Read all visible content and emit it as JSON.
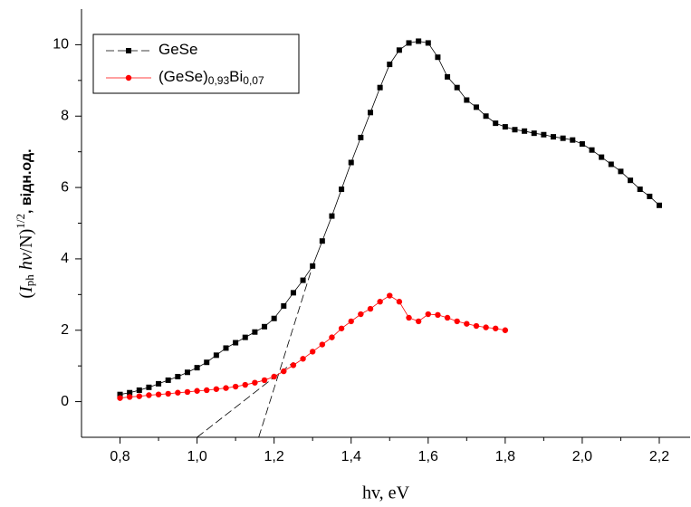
{
  "chart_data": {
    "type": "line",
    "x_label": "hv, eV",
    "y_label": "(Iphhv/N)1/2, відн.од.",
    "xlim": [
      0.7,
      2.28
    ],
    "ylim": [
      -1,
      11
    ],
    "xticks": [
      {
        "value": 0.8,
        "label": "0,8"
      },
      {
        "value": 1.0,
        "label": "1,0"
      },
      {
        "value": 1.2,
        "label": "1,2"
      },
      {
        "value": 1.4,
        "label": "1,4"
      },
      {
        "value": 1.6,
        "label": "1,6"
      },
      {
        "value": 1.8,
        "label": "1,8"
      },
      {
        "value": 2.0,
        "label": "2,0"
      },
      {
        "value": 2.2,
        "label": "2,2"
      }
    ],
    "yticks": [
      0,
      2,
      4,
      6,
      8,
      10
    ],
    "legend": "upper left",
    "series": [
      {
        "name": "GeSe",
        "color": "#000000",
        "marker": "square",
        "x": [
          0.8,
          0.825,
          0.85,
          0.875,
          0.9,
          0.925,
          0.95,
          0.975,
          1.0,
          1.025,
          1.05,
          1.075,
          1.1,
          1.125,
          1.15,
          1.175,
          1.2,
          1.225,
          1.25,
          1.275,
          1.3,
          1.325,
          1.35,
          1.375,
          1.4,
          1.425,
          1.45,
          1.475,
          1.5,
          1.525,
          1.55,
          1.575,
          1.6,
          1.625,
          1.65,
          1.675,
          1.7,
          1.725,
          1.75,
          1.775,
          1.8,
          1.825,
          1.85,
          1.875,
          1.9,
          1.925,
          1.95,
          1.975,
          2.0,
          2.025,
          2.05,
          2.075,
          2.1,
          2.125,
          2.15,
          2.175,
          2.2
        ],
        "values": [
          0.2,
          0.25,
          0.32,
          0.4,
          0.5,
          0.6,
          0.7,
          0.82,
          0.95,
          1.1,
          1.3,
          1.5,
          1.65,
          1.8,
          1.95,
          2.1,
          2.33,
          2.68,
          3.05,
          3.4,
          3.8,
          4.5,
          5.2,
          5.95,
          6.7,
          7.4,
          8.1,
          8.8,
          9.45,
          9.85,
          10.05,
          10.1,
          10.05,
          9.65,
          9.1,
          8.8,
          8.45,
          8.25,
          8.0,
          7.8,
          7.7,
          7.62,
          7.58,
          7.52,
          7.48,
          7.42,
          7.38,
          7.33,
          7.22,
          7.05,
          6.85,
          6.65,
          6.45,
          6.2,
          5.95,
          5.75,
          5.5
        ]
      },
      {
        "name": "(GeSe)0,93Bi0,07",
        "color": "#ff0000",
        "marker": "circle",
        "x": [
          0.8,
          0.825,
          0.85,
          0.875,
          0.9,
          0.925,
          0.95,
          0.975,
          1.0,
          1.025,
          1.05,
          1.075,
          1.1,
          1.125,
          1.15,
          1.175,
          1.2,
          1.225,
          1.25,
          1.275,
          1.3,
          1.325,
          1.35,
          1.375,
          1.4,
          1.425,
          1.45,
          1.475,
          1.5,
          1.525,
          1.55,
          1.575,
          1.6,
          1.625,
          1.65,
          1.675,
          1.7,
          1.725,
          1.75,
          1.775,
          1.8
        ],
        "values": [
          0.1,
          0.13,
          0.15,
          0.18,
          0.2,
          0.22,
          0.25,
          0.27,
          0.3,
          0.32,
          0.35,
          0.38,
          0.42,
          0.47,
          0.53,
          0.6,
          0.7,
          0.85,
          1.02,
          1.2,
          1.4,
          1.6,
          1.8,
          2.05,
          2.25,
          2.45,
          2.6,
          2.8,
          2.97,
          2.8,
          2.35,
          2.25,
          2.45,
          2.43,
          2.35,
          2.25,
          2.18,
          2.12,
          2.08,
          2.05,
          2.0
        ]
      }
    ],
    "fit_lines": [
      {
        "x": [
          1.0,
          1.25
        ],
        "values": [
          -1,
          1.1
        ]
      },
      {
        "x": [
          1.16,
          1.3
        ],
        "values": [
          -1,
          3.8
        ]
      }
    ]
  }
}
